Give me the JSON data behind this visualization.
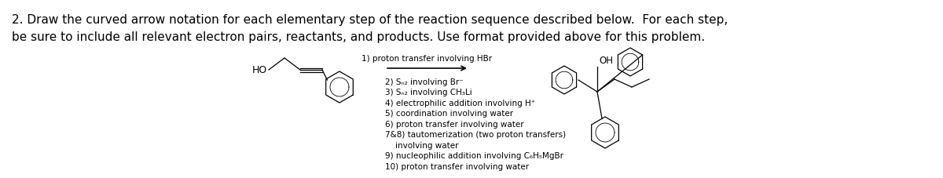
{
  "title_line1": "2. Draw the curved arrow notation for each elementary step of the reaction sequence described below.  For each step,",
  "title_line2": "be sure to include all relevant electron pairs, reactants, and products. Use format provided above for this problem.",
  "arrow_label": "1) proton transfer involving HBr",
  "steps": [
    "2) Sₙ₂ involving Br⁻",
    "3) Sₙ₂ involving CH₃Li",
    "4) electrophilic addition involving H⁺",
    "5) coordination involving water",
    "6) proton transfer involving water",
    "7&8) tautomerization (two proton transfers)",
    "    involving water",
    "9) nucleophilic addition involving C₆H₅MgBr",
    "10) proton transfer involving water"
  ],
  "bg_color": "#ffffff",
  "text_color": "#000000",
  "fontsize_title": 11.0,
  "fontsize_steps": 7.5,
  "fontsize_arrow_label": 7.5,
  "figsize": [
    12.0,
    2.28
  ],
  "dpi": 100
}
